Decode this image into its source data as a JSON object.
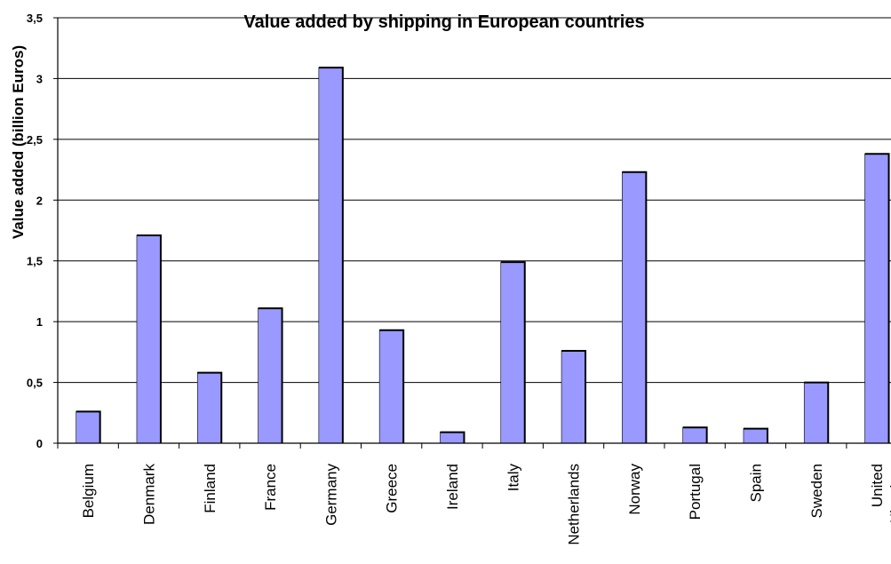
{
  "chart_data": {
    "type": "bar",
    "title": "Value added by shipping in European countries",
    "ylabel": "Value added (billion Euros)",
    "xlabel": "",
    "ylim": [
      0,
      3.5
    ],
    "yticks": [
      0,
      0.5,
      1,
      1.5,
      2,
      2.5,
      3,
      3.5
    ],
    "ytick_labels": [
      "0",
      "0,5",
      "1",
      "1,5",
      "2",
      "2,5",
      "3",
      "3,5"
    ],
    "grid": true,
    "categories": [
      "Belgium",
      "Denmark",
      "Finland",
      "France",
      "Germany",
      "Greece",
      "Ireland",
      "Italy",
      "Netherlands",
      "Norway",
      "Portugal",
      "Spain",
      "Sweden",
      "United Kingdom"
    ],
    "values": [
      0.26,
      1.71,
      0.58,
      1.11,
      3.09,
      0.93,
      0.09,
      1.49,
      0.76,
      2.23,
      0.13,
      0.12,
      0.5,
      2.38
    ],
    "bar_color": "#9999ff"
  }
}
